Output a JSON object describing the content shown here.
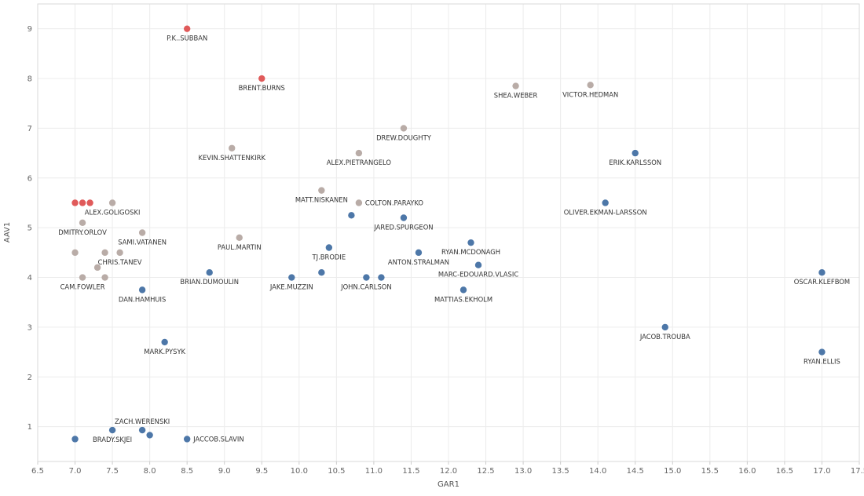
{
  "chart_data": {
    "type": "scatter",
    "title": "",
    "xlabel": "GAR1",
    "ylabel": "AAV1",
    "xlim": [
      6.5,
      17.5
    ],
    "ylim": [
      0.3,
      9.5
    ],
    "x_ticks": [
      "6.5",
      "7.0",
      "7.5",
      "8.0",
      "8.5",
      "9.0",
      "9.5",
      "10.0",
      "10.5",
      "11.0",
      "11.5",
      "12.0",
      "12.5",
      "13.0",
      "13.5",
      "14.0",
      "14.5",
      "15.0",
      "15.5",
      "16.0",
      "16.5",
      "17.0",
      "17.5"
    ],
    "y_ticks": [
      "1",
      "2",
      "3",
      "4",
      "5",
      "6",
      "7",
      "8",
      "9"
    ],
    "colors": {
      "red": "#e05a5a",
      "gray": "#b9aca7",
      "blue": "#4d77a8"
    },
    "points": [
      {
        "x": 8.5,
        "y": 9.0,
        "color": "red",
        "label": "P.K..SUBBAN",
        "pos": "below"
      },
      {
        "x": 9.5,
        "y": 8.0,
        "color": "red",
        "label": "BRENT.BURNS",
        "pos": "below"
      },
      {
        "x": 7.0,
        "y": 5.5,
        "color": "red",
        "label": ""
      },
      {
        "x": 7.1,
        "y": 5.5,
        "color": "red",
        "label": ""
      },
      {
        "x": 7.2,
        "y": 5.5,
        "color": "red",
        "label": ""
      },
      {
        "x": 12.9,
        "y": 7.85,
        "color": "gray",
        "label": "SHEA.WEBER",
        "pos": "below"
      },
      {
        "x": 13.9,
        "y": 7.87,
        "color": "gray",
        "label": "VICTOR.HEDMAN",
        "pos": "below"
      },
      {
        "x": 11.4,
        "y": 7.0,
        "color": "gray",
        "label": "DREW.DOUGHTY",
        "pos": "below"
      },
      {
        "x": 9.1,
        "y": 6.6,
        "color": "gray",
        "label": "KEVIN.SHATTENKIRK",
        "pos": "below"
      },
      {
        "x": 10.8,
        "y": 6.5,
        "color": "gray",
        "label": "ALEX.PIETRANGELO",
        "pos": "below"
      },
      {
        "x": 10.3,
        "y": 5.75,
        "color": "gray",
        "label": "MATT.NISKANEN",
        "pos": "below"
      },
      {
        "x": 10.8,
        "y": 5.5,
        "color": "gray",
        "label": "COLTON.PARAYKO",
        "pos": "right"
      },
      {
        "x": 7.5,
        "y": 5.5,
        "color": "gray",
        "label": "ALEX.GOLIGOSKI",
        "pos": "below"
      },
      {
        "x": 7.1,
        "y": 5.1,
        "color": "gray",
        "label": "DMITRY.ORLOV",
        "pos": "below"
      },
      {
        "x": 7.9,
        "y": 4.9,
        "color": "gray",
        "label": "SAMI.VATANEN",
        "pos": "below"
      },
      {
        "x": 9.2,
        "y": 4.8,
        "color": "gray",
        "label": "PAUL.MARTIN",
        "pos": "below"
      },
      {
        "x": 7.0,
        "y": 4.5,
        "color": "gray",
        "label": ""
      },
      {
        "x": 7.4,
        "y": 4.5,
        "color": "gray",
        "label": ""
      },
      {
        "x": 7.6,
        "y": 4.5,
        "color": "gray",
        "label": "CHRIS.TANEV",
        "pos": "below"
      },
      {
        "x": 7.3,
        "y": 4.2,
        "color": "gray",
        "label": ""
      },
      {
        "x": 7.1,
        "y": 4.0,
        "color": "gray",
        "label": "CAM.FOWLER",
        "pos": "below"
      },
      {
        "x": 7.4,
        "y": 4.0,
        "color": "gray",
        "label": ""
      },
      {
        "x": 14.5,
        "y": 6.5,
        "color": "blue",
        "label": "ERIK.KARLSSON",
        "pos": "below"
      },
      {
        "x": 14.1,
        "y": 5.5,
        "color": "blue",
        "label": "OLIVER.EKMAN-LARSSON",
        "pos": "below"
      },
      {
        "x": 10.7,
        "y": 5.25,
        "color": "blue",
        "label": ""
      },
      {
        "x": 11.4,
        "y": 5.2,
        "color": "blue",
        "label": "JARED.SPURGEON",
        "pos": "below"
      },
      {
        "x": 12.3,
        "y": 4.7,
        "color": "blue",
        "label": "RYAN.MCDONAGH",
        "pos": "below"
      },
      {
        "x": 10.4,
        "y": 4.6,
        "color": "blue",
        "label": "TJ.BRODIE",
        "pos": "below"
      },
      {
        "x": 11.6,
        "y": 4.5,
        "color": "blue",
        "label": "ANTON.STRALMAN",
        "pos": "below"
      },
      {
        "x": 12.4,
        "y": 4.25,
        "color": "blue",
        "label": "MARC-EDOUARD.VLASIC",
        "pos": "below"
      },
      {
        "x": 8.8,
        "y": 4.1,
        "color": "blue",
        "label": "BRIAN.DUMOULIN",
        "pos": "below"
      },
      {
        "x": 10.3,
        "y": 4.1,
        "color": "blue",
        "label": ""
      },
      {
        "x": 9.9,
        "y": 4.0,
        "color": "blue",
        "label": "JAKE.MUZZIN",
        "pos": "below"
      },
      {
        "x": 10.9,
        "y": 4.0,
        "color": "blue",
        "label": "JOHN.CARLSON",
        "pos": "below"
      },
      {
        "x": 11.1,
        "y": 4.0,
        "color": "blue",
        "label": ""
      },
      {
        "x": 12.2,
        "y": 3.75,
        "color": "blue",
        "label": "MATTIAS.EKHOLM",
        "pos": "below"
      },
      {
        "x": 7.9,
        "y": 3.75,
        "color": "blue",
        "label": "DAN.HAMHUIS",
        "pos": "below"
      },
      {
        "x": 17.0,
        "y": 4.1,
        "color": "blue",
        "label": "OSCAR.KLEFBOM",
        "pos": "below"
      },
      {
        "x": 14.9,
        "y": 3.0,
        "color": "blue",
        "label": "JACOB.TROUBA",
        "pos": "below"
      },
      {
        "x": 17.0,
        "y": 2.5,
        "color": "blue",
        "label": "RYAN.ELLIS",
        "pos": "below"
      },
      {
        "x": 8.2,
        "y": 2.7,
        "color": "blue",
        "label": "MARK.PYSYK",
        "pos": "below"
      },
      {
        "x": 7.9,
        "y": 0.93,
        "color": "blue",
        "label": "ZACH.WERENSKI",
        "pos": "above"
      },
      {
        "x": 7.5,
        "y": 0.93,
        "color": "blue",
        "label": "BRADY.SKJEI",
        "pos": "below"
      },
      {
        "x": 8.0,
        "y": 0.83,
        "color": "blue",
        "label": ""
      },
      {
        "x": 8.5,
        "y": 0.75,
        "color": "blue",
        "label": "JACCOB.SLAVIN",
        "pos": "right"
      },
      {
        "x": 7.0,
        "y": 0.75,
        "color": "blue",
        "label": ""
      }
    ]
  }
}
